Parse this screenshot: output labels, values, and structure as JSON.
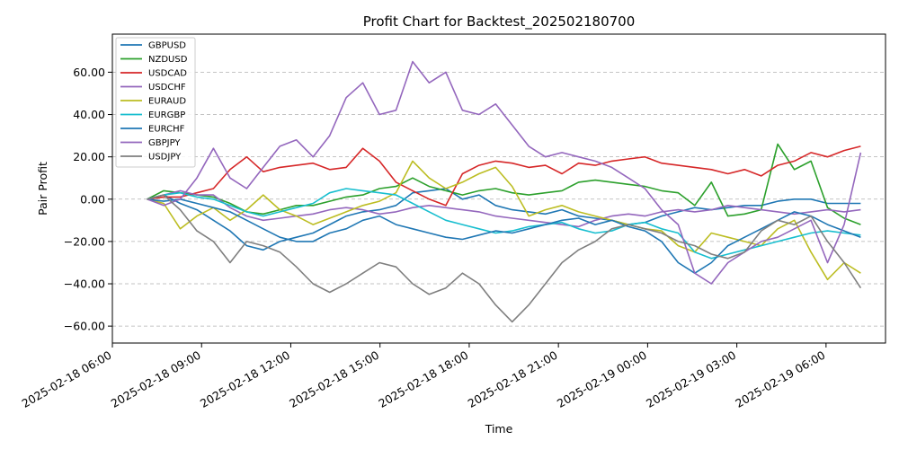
{
  "chart_data": {
    "type": "line",
    "title": "Profit Chart for Backtest_202502180700",
    "xlabel": "Time",
    "ylabel": "Pair Profit",
    "x_range": [
      "2025-02-18 06:00",
      "2025-02-19 08:00"
    ],
    "x_start": "2025-02-18 07:10",
    "x_end": "2025-02-19 07:10",
    "ylim": [
      -68,
      78
    ],
    "grid": "y-dashed",
    "legend_position": "top-left",
    "x_ticks": [
      {
        "value": "2025-02-18 06:00",
        "label": "2025-02-18 06:00"
      },
      {
        "value": "2025-02-18 09:00",
        "label": "2025-02-18 09:00"
      },
      {
        "value": "2025-02-18 12:00",
        "label": "2025-02-18 12:00"
      },
      {
        "value": "2025-02-18 15:00",
        "label": "2025-02-18 15:00"
      },
      {
        "value": "2025-02-18 18:00",
        "label": "2025-02-18 18:00"
      },
      {
        "value": "2025-02-18 21:00",
        "label": "2025-02-18 21:00"
      },
      {
        "value": "2025-02-19 00:00",
        "label": "2025-02-19 00:00"
      },
      {
        "value": "2025-02-19 03:00",
        "label": "2025-02-19 03:00"
      },
      {
        "value": "2025-02-19 06:00",
        "label": "2025-02-19 06:00"
      }
    ],
    "y_ticks": [
      {
        "value": 60,
        "label": "60.00"
      },
      {
        "value": 40,
        "label": "40.00"
      },
      {
        "value": 20,
        "label": "20.00"
      },
      {
        "value": 0,
        "label": "0.00"
      },
      {
        "value": -20,
        "label": "−20.00"
      },
      {
        "value": -40,
        "label": "−40.00"
      },
      {
        "value": -60,
        "label": "−60.00"
      }
    ],
    "series": [
      {
        "name": "GBPUSD",
        "color": "#1f77b4",
        "values": [
          0,
          2,
          -2,
          -5,
          -10,
          -15,
          -22,
          -24,
          -20,
          -18,
          -16,
          -12,
          -8,
          -6,
          -5,
          -3,
          3,
          4,
          5,
          0,
          2,
          -3,
          -5,
          -6,
          -7,
          -5,
          -8,
          -9,
          -10,
          -12,
          -11,
          -8,
          -6,
          -4,
          -5,
          -4,
          -3,
          -3,
          -1,
          0,
          0,
          -2,
          -2,
          -2
        ]
      },
      {
        "name": "NZDUSD",
        "color": "#2ca02c",
        "values": [
          0,
          4,
          3,
          2,
          1,
          -2,
          -6,
          -7,
          -5,
          -3,
          -3,
          -1,
          1,
          2,
          5,
          6,
          10,
          6,
          4,
          2,
          4,
          5,
          3,
          2,
          3,
          4,
          8,
          9,
          8,
          7,
          6,
          4,
          3,
          -3,
          8,
          -8,
          -7,
          -5,
          26,
          14,
          18,
          -4,
          -9,
          -12
        ]
      },
      {
        "name": "USDCAD",
        "color": "#d62728",
        "values": [
          0,
          1,
          1,
          3,
          5,
          14,
          20,
          13,
          15,
          16,
          17,
          14,
          15,
          24,
          18,
          8,
          4,
          0,
          -3,
          12,
          16,
          18,
          17,
          15,
          16,
          12,
          17,
          16,
          18,
          19,
          20,
          17,
          16,
          15,
          14,
          12,
          14,
          11,
          16,
          18,
          22,
          20,
          23,
          25
        ]
      },
      {
        "name": "USDCHF",
        "color": "#9467bd",
        "values": [
          0,
          2,
          4,
          2,
          2,
          -4,
          -8,
          -10,
          -9,
          -8,
          -7,
          -5,
          -4,
          -5,
          -7,
          -6,
          -4,
          -3,
          -4,
          -5,
          -6,
          -8,
          -9,
          -10,
          -11,
          -12,
          -13,
          -10,
          -8,
          -7,
          -8,
          -6,
          -5,
          -6,
          -5,
          -3,
          -4,
          -5,
          -6,
          -7,
          -6,
          -5,
          -6,
          -5
        ]
      },
      {
        "name": "EURAUD",
        "color": "#bcbd22",
        "values": [
          0,
          -2,
          -14,
          -8,
          -4,
          -10,
          -5,
          2,
          -5,
          -8,
          -12,
          -9,
          -6,
          -3,
          -1,
          3,
          18,
          10,
          5,
          8,
          12,
          15,
          6,
          -8,
          -5,
          -3,
          -6,
          -8,
          -10,
          -12,
          -14,
          -15,
          -22,
          -25,
          -16,
          -18,
          -20,
          -22,
          -14,
          -10,
          -25,
          -38,
          -30,
          -35
        ]
      },
      {
        "name": "EURGBP",
        "color": "#17becf",
        "values": [
          0,
          2,
          3,
          1,
          0,
          -3,
          -6,
          -8,
          -6,
          -4,
          -2,
          3,
          5,
          4,
          3,
          2,
          -2,
          -6,
          -10,
          -12,
          -14,
          -16,
          -15,
          -13,
          -12,
          -11,
          -14,
          -16,
          -15,
          -12,
          -11,
          -14,
          -16,
          -25,
          -28,
          -26,
          -24,
          -22,
          -20,
          -18,
          -16,
          -15,
          -16,
          -17
        ]
      },
      {
        "name": "EURCHF",
        "color": "#1f77b4",
        "values": [
          0,
          -1,
          0,
          -2,
          -4,
          -6,
          -10,
          -14,
          -18,
          -20,
          -20,
          -16,
          -14,
          -10,
          -8,
          -12,
          -14,
          -16,
          -18,
          -19,
          -17,
          -15,
          -16,
          -14,
          -12,
          -10,
          -9,
          -12,
          -10,
          -13,
          -15,
          -20,
          -30,
          -35,
          -30,
          -22,
          -18,
          -14,
          -10,
          -6,
          -8,
          -12,
          -15,
          -18
        ]
      },
      {
        "name": "GBPJPY",
        "color": "#9467bd",
        "values": [
          0,
          -3,
          0,
          10,
          24,
          10,
          5,
          15,
          25,
          28,
          20,
          30,
          48,
          55,
          40,
          42,
          65,
          55,
          60,
          42,
          40,
          45,
          35,
          25,
          20,
          22,
          20,
          18,
          15,
          10,
          5,
          -5,
          -12,
          -35,
          -40,
          -30,
          -25,
          -20,
          -18,
          -14,
          -10,
          -30,
          -12,
          22
        ]
      },
      {
        "name": "USDJPY",
        "color": "#7f7f7f",
        "values": [
          0,
          2,
          -5,
          -15,
          -20,
          -30,
          -20,
          -22,
          -25,
          -32,
          -40,
          -44,
          -40,
          -35,
          -30,
          -32,
          -40,
          -45,
          -42,
          -35,
          -40,
          -50,
          -58,
          -50,
          -40,
          -30,
          -24,
          -20,
          -14,
          -12,
          -14,
          -16,
          -20,
          -22,
          -26,
          -28,
          -25,
          -15,
          -10,
          -12,
          -8,
          -20,
          -30,
          -42
        ]
      }
    ]
  }
}
